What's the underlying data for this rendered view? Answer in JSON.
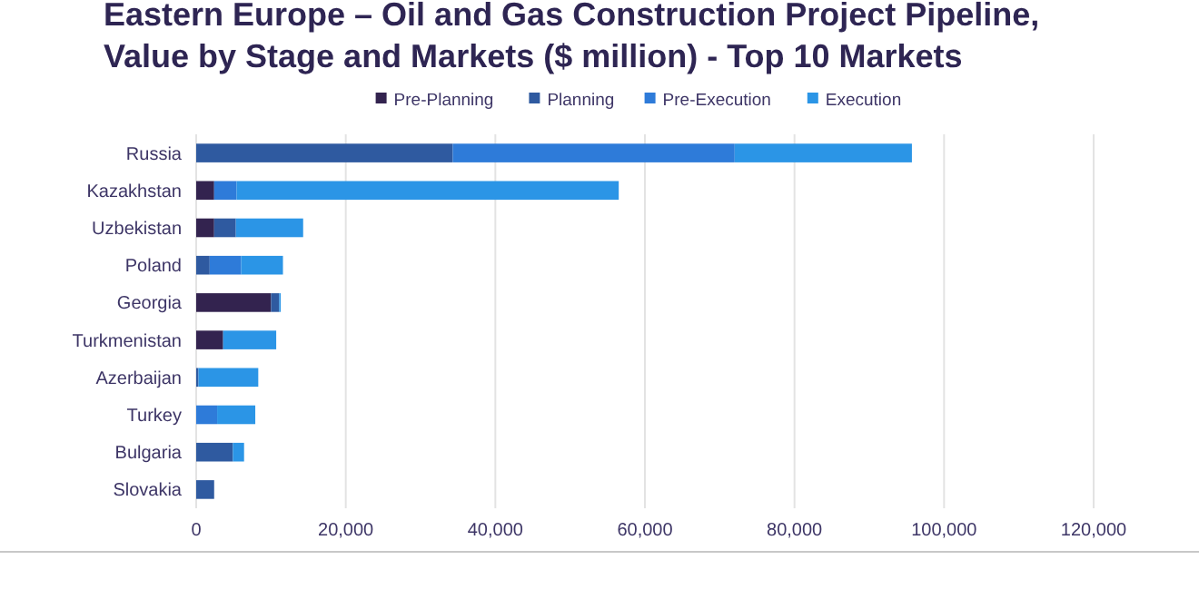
{
  "chart_data": {
    "type": "bar",
    "orientation": "horizontal",
    "stacked": true,
    "title": "Eastern Europe – Oil and Gas Construction Project Pipeline, Value by Stage and Markets ($ million) - Top 10 Markets",
    "categories": [
      "Russia",
      "Kazakhstan",
      "Uzbekistan",
      "Poland",
      "Georgia",
      "Turkmenistan",
      "Azerbaijan",
      "Turkey",
      "Bulgaria",
      "Slovakia"
    ],
    "series": [
      {
        "name": "Pre-Planning",
        "color": "#33234f",
        "values": [
          0,
          2400,
          2400,
          0,
          10000,
          3600,
          0,
          0,
          0,
          0
        ]
      },
      {
        "name": "Planning",
        "color": "#2f5aa0",
        "values": [
          34300,
          0,
          2900,
          1800,
          1100,
          0,
          300,
          0,
          4900,
          2400
        ]
      },
      {
        "name": "Pre-Execution",
        "color": "#2e7bd9",
        "values": [
          37700,
          3000,
          0,
          4200,
          0,
          0,
          0,
          2800,
          0,
          0
        ]
      },
      {
        "name": "Execution",
        "color": "#2b95e6",
        "values": [
          23700,
          51100,
          9000,
          5600,
          200,
          7100,
          8000,
          5100,
          1500,
          0
        ]
      }
    ],
    "xlim": [
      0,
      120000
    ],
    "xticks": [
      {
        "value": 0,
        "label": "0"
      },
      {
        "value": 20000,
        "label": "20,000"
      },
      {
        "value": 40000,
        "label": "40,000"
      },
      {
        "value": 60000,
        "label": "60,000"
      },
      {
        "value": 80000,
        "label": "80,000"
      },
      {
        "value": 100000,
        "label": "100,000"
      },
      {
        "value": 120000,
        "label": "120,000"
      }
    ],
    "grid": "x",
    "legend": "top"
  }
}
